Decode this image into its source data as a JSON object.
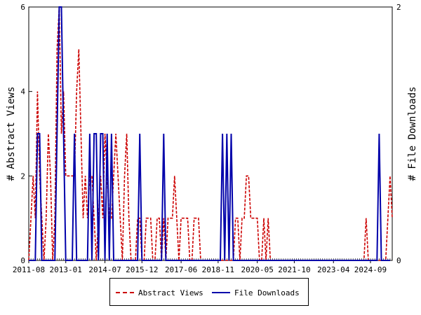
{
  "chart_data": {
    "type": "line",
    "x_tick_labels": [
      "2011-08",
      "2013-01",
      "2014-07",
      "2015-12",
      "2017-06",
      "2018-11",
      "2020-05",
      "2021-10",
      "2023-04",
      "2024-09"
    ],
    "x_tick_months": [
      0,
      17,
      35,
      52,
      70,
      87,
      105,
      122,
      140,
      157
    ],
    "x_range_months": [
      0,
      167
    ],
    "y_left": {
      "label": "# Abstract Views",
      "ticks": [
        0,
        2,
        4,
        6
      ],
      "range": [
        0,
        6
      ]
    },
    "y_right": {
      "label": "# File Downloads",
      "ticks": [
        0,
        2
      ],
      "range": [
        0,
        2
      ]
    },
    "series": [
      {
        "name": "Abstract Views",
        "axis": "left",
        "color": "#cc0000",
        "style": "dashed",
        "values": [
          0,
          1,
          2,
          1,
          4,
          2,
          1,
          0,
          1,
          3,
          2,
          0,
          1,
          5,
          6,
          3,
          4,
          2,
          2,
          2,
          2,
          2,
          4,
          5,
          3,
          1,
          2,
          1,
          2,
          2,
          1,
          0,
          1,
          2,
          1,
          3,
          2,
          1,
          1,
          2,
          3,
          2,
          1,
          0,
          2,
          3,
          1,
          0,
          0,
          0,
          1,
          1,
          0,
          0,
          1,
          1,
          1,
          0,
          0,
          1,
          1,
          0,
          1,
          0,
          1,
          1,
          1,
          2,
          1,
          0,
          1,
          1,
          1,
          1,
          0,
          0,
          1,
          1,
          1,
          0,
          0,
          0,
          0,
          0,
          0,
          0,
          0,
          0,
          0,
          0,
          0,
          0,
          0,
          0,
          0,
          1,
          1,
          0,
          1,
          1,
          2,
          2,
          1,
          1,
          1,
          1,
          0,
          0,
          1,
          0,
          1,
          0,
          0,
          0,
          0,
          0,
          0,
          0,
          0,
          0,
          0,
          0,
          0,
          0,
          0,
          0,
          0,
          0,
          0,
          0,
          0,
          0,
          0,
          0,
          0,
          0,
          0,
          0,
          0,
          0,
          0,
          0,
          0,
          0,
          0,
          0,
          0,
          0,
          0,
          0,
          0,
          0,
          0,
          0,
          0,
          1,
          0,
          0,
          0,
          0,
          0,
          0,
          0,
          0,
          0,
          1,
          2,
          1
        ]
      },
      {
        "name": "File Downloads",
        "axis": "right",
        "color": "#0000aa",
        "style": "solid",
        "values": [
          0,
          0,
          0,
          0,
          1,
          1,
          0,
          0,
          0,
          0,
          0,
          0,
          0,
          1,
          2,
          2,
          1,
          0,
          0,
          0,
          0,
          1,
          0,
          0,
          0,
          0,
          0,
          0,
          1,
          0,
          1,
          1,
          0,
          1,
          1,
          0,
          1,
          0,
          1,
          0,
          0,
          0,
          0,
          0,
          0,
          0,
          0,
          0,
          0,
          0,
          0,
          1,
          0,
          0,
          0,
          0,
          0,
          0,
          0,
          0,
          0,
          0,
          1,
          0,
          0,
          0,
          0,
          0,
          0,
          0,
          0,
          0,
          0,
          0,
          0,
          0,
          0,
          0,
          0,
          0,
          0,
          0,
          0,
          0,
          0,
          0,
          0,
          0,
          0,
          1,
          0,
          1,
          0,
          1,
          0,
          0,
          0,
          0,
          0,
          0,
          0,
          0,
          0,
          0,
          0,
          0,
          0,
          0,
          0,
          0,
          0,
          0,
          0,
          0,
          0,
          0,
          0,
          0,
          0,
          0,
          0,
          0,
          0,
          0,
          0,
          0,
          0,
          0,
          0,
          0,
          0,
          0,
          0,
          0,
          0,
          0,
          0,
          0,
          0,
          0,
          0,
          0,
          0,
          0,
          0,
          0,
          0,
          0,
          0,
          0,
          0,
          0,
          0,
          0,
          0,
          0,
          0,
          0,
          0,
          0,
          0,
          1,
          0,
          0,
          0,
          0,
          0
        ]
      }
    ],
    "grid": false,
    "legend_position": "bottom"
  }
}
